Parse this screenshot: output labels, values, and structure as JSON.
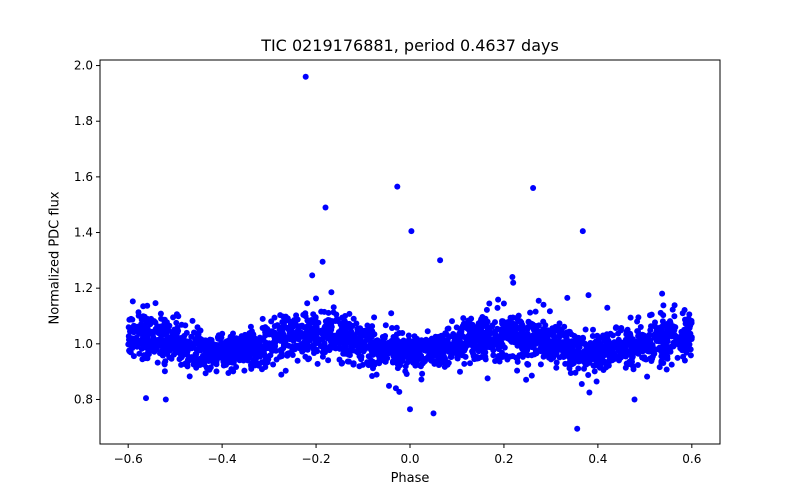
{
  "chart_data": {
    "type": "scatter",
    "title": "TIC 0219176881, period 0.4637 days",
    "xlabel": "Phase",
    "ylabel": "Normalized PDC flux",
    "xlim": [
      -0.66,
      0.66
    ],
    "ylim": [
      0.64,
      2.02
    ],
    "xticks": [
      -0.6,
      -0.4,
      -0.2,
      0.0,
      0.2,
      0.4,
      0.6
    ],
    "xtick_labels": [
      "−0.6",
      "−0.4",
      "−0.2",
      "0.0",
      "0.2",
      "0.4",
      "0.6"
    ],
    "yticks": [
      0.8,
      1.0,
      1.2,
      1.4,
      1.6,
      1.8,
      2.0
    ],
    "ytick_labels": [
      "0.8",
      "1.0",
      "1.2",
      "1.4",
      "1.6",
      "1.8",
      "2.0"
    ],
    "grid": false,
    "legend": null,
    "marker_color": "#0000ff",
    "marker_size": 3,
    "bulk_model": {
      "description": "Phase-folded light curve: dense band around flux ~1.0 with two humps (near phase -0.2 and +0.2) and dips near phase -0.5, 0.0 and +0.5",
      "phase_range": [
        -0.6,
        0.6
      ],
      "n_points": 2600,
      "baseline": 1.0,
      "amplitude": 0.03,
      "scatter": 0.025,
      "seed": 219176881
    },
    "outliers": [
      {
        "x": -0.222,
        "y": 1.96
      },
      {
        "x": -0.18,
        "y": 1.49
      },
      {
        "x": -0.186,
        "y": 1.295
      },
      {
        "x": -0.027,
        "y": 1.565
      },
      {
        "x": 0.003,
        "y": 1.405
      },
      {
        "x": 0.064,
        "y": 1.3
      },
      {
        "x": 0.262,
        "y": 1.56
      },
      {
        "x": 0.368,
        "y": 1.405
      },
      {
        "x": 0.218,
        "y": 1.24
      },
      {
        "x": -0.568,
        "y": 1.135
      },
      {
        "x": -0.562,
        "y": 0.805
      },
      {
        "x": -0.52,
        "y": 0.8
      },
      {
        "x": 0.0,
        "y": 0.765
      },
      {
        "x": 0.05,
        "y": 0.75
      },
      {
        "x": 0.356,
        "y": 0.695
      },
      {
        "x": 0.478,
        "y": 0.8
      },
      {
        "x": 0.382,
        "y": 0.825
      },
      {
        "x": -0.03,
        "y": 0.84
      },
      {
        "x": 0.38,
        "y": 1.175
      },
      {
        "x": 0.335,
        "y": 1.165
      },
      {
        "x": 0.274,
        "y": 1.155
      },
      {
        "x": 0.2,
        "y": 1.145
      },
      {
        "x": -0.04,
        "y": 1.11
      },
      {
        "x": -0.53,
        "y": 1.09
      },
      {
        "x": 0.42,
        "y": 1.13
      }
    ]
  }
}
